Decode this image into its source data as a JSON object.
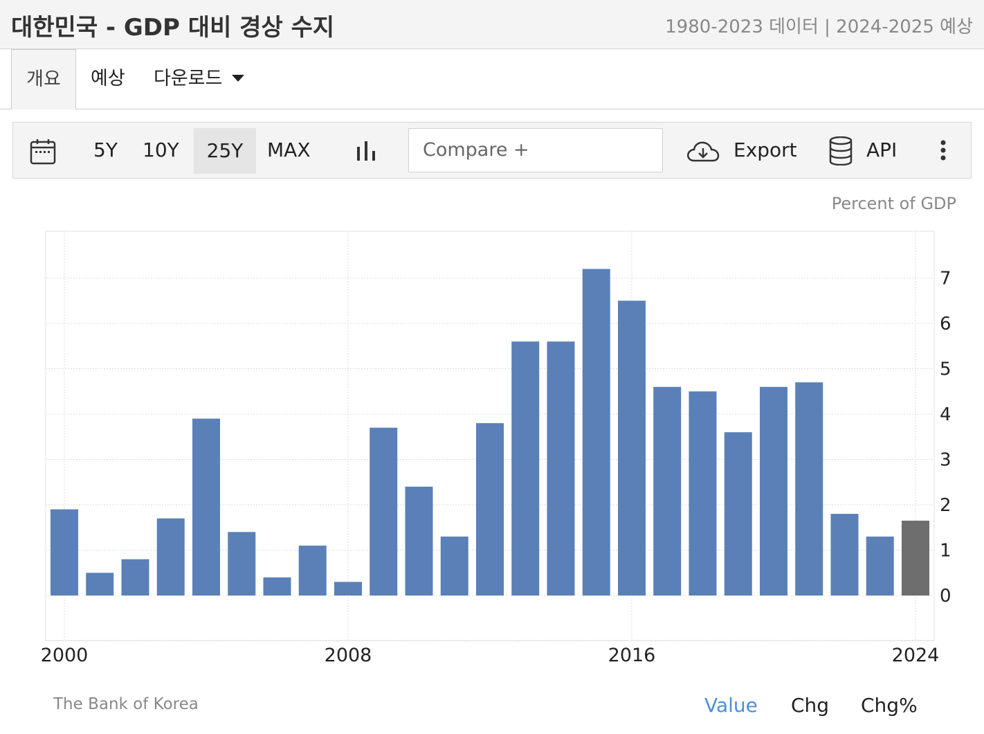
{
  "header": {
    "title": "대한민국 - GDP 대비 경상 수지",
    "subtitle": "1980-2023 데이터 | 2024-2025 예상"
  },
  "tabs": [
    {
      "label": "개요"
    },
    {
      "label": "예상"
    },
    {
      "label": "다운로드"
    }
  ],
  "toolbar": {
    "ranges": [
      "5Y",
      "10Y",
      "25Y",
      "MAX"
    ],
    "selected_range": "25Y",
    "compare_placeholder": "Compare +",
    "export_label": "Export",
    "api_label": "API"
  },
  "chart_data": {
    "type": "bar",
    "unit_label": "Percent of GDP",
    "x": [
      2000,
      2001,
      2002,
      2003,
      2004,
      2005,
      2006,
      2007,
      2008,
      2009,
      2010,
      2011,
      2012,
      2013,
      2014,
      2015,
      2016,
      2017,
      2018,
      2019,
      2020,
      2021,
      2022,
      2023,
      2024
    ],
    "values": [
      1.9,
      0.5,
      0.8,
      1.7,
      3.9,
      1.4,
      0.4,
      1.1,
      0.3,
      3.7,
      2.4,
      1.3,
      3.8,
      5.6,
      5.6,
      7.2,
      6.5,
      4.6,
      4.5,
      3.6,
      4.6,
      4.7,
      1.8,
      1.3,
      1.65
    ],
    "forecast_from": 2024,
    "x_ticks": [
      "2000",
      "2008",
      "2016",
      "2024"
    ],
    "y_ticks": [
      "0",
      "1",
      "2",
      "3",
      "4",
      "5",
      "6",
      "7"
    ],
    "ylim": [
      -1,
      8
    ],
    "colors": {
      "actual": "#5a80b7",
      "forecast": "#6e6e6e"
    }
  },
  "footer": {
    "source": "The Bank of Korea",
    "views": [
      "Value",
      "Chg",
      "Chg%"
    ],
    "active_view": "Value"
  }
}
